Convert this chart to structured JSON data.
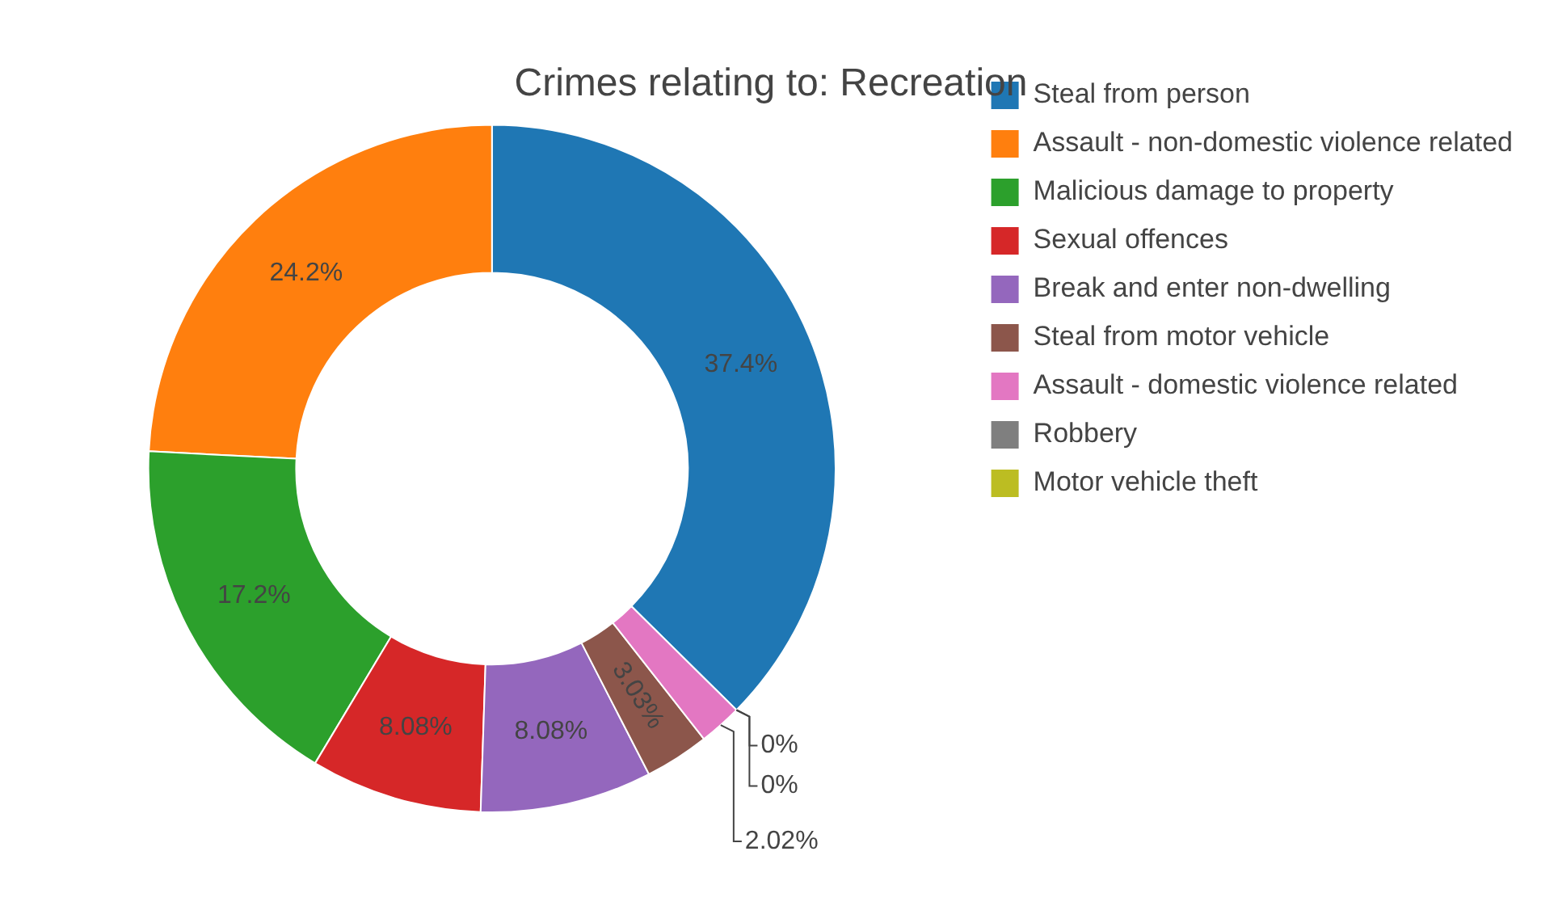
{
  "chart_data": {
    "type": "donut",
    "title": "Crimes relating to: Recreation",
    "categories": [
      "Steal from person",
      "Assault - non-domestic violence related",
      "Malicious damage to property",
      "Sexual offences",
      "Break and enter non-dwelling",
      "Steal from motor vehicle",
      "Assault - domestic violence related",
      "Robbery",
      "Motor vehicle theft"
    ],
    "values": [
      37.4,
      24.2,
      17.2,
      8.08,
      8.08,
      3.03,
      2.02,
      0,
      0
    ],
    "value_labels": [
      "37.4%",
      "24.2%",
      "17.2%",
      "8.08%",
      "8.08%",
      "3.03%",
      "2.02%",
      "0%",
      "0%"
    ],
    "colors": [
      "#1f77b4",
      "#ff7f0e",
      "#2ca02c",
      "#d62728",
      "#9467bd",
      "#8c564b",
      "#e377c2",
      "#7f7f7f",
      "#bcbd22"
    ],
    "legend": "top right"
  }
}
